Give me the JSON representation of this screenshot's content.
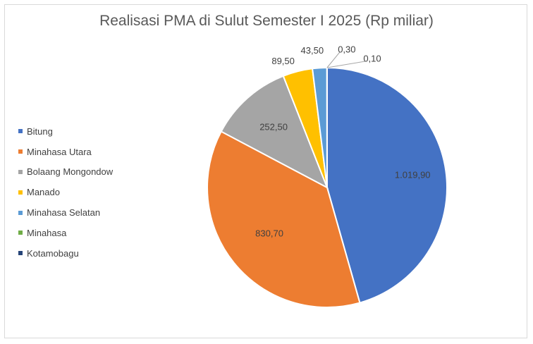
{
  "chart_data": {
    "type": "pie",
    "title": "Realisasi PMA di Sulut Semester I 2025 (Rp miliar)",
    "categories": [
      "Bitung",
      "Minahasa Utara",
      "Bolaang Mongondow",
      "Manado",
      "Minahasa Selatan",
      "Minahasa",
      "Kotamobagu"
    ],
    "values": [
      1019.9,
      830.7,
      252.5,
      89.5,
      43.5,
      0.3,
      0.1
    ],
    "data_labels": [
      "1.019,90",
      "830,70",
      "252,50",
      "89,50",
      "43,50",
      "0,30",
      "0,10"
    ],
    "colors": [
      "#4472c4",
      "#ed7d31",
      "#a5a5a5",
      "#ffc000",
      "#5b9bd5",
      "#70ad47",
      "#264478"
    ],
    "legend_position": "left"
  }
}
